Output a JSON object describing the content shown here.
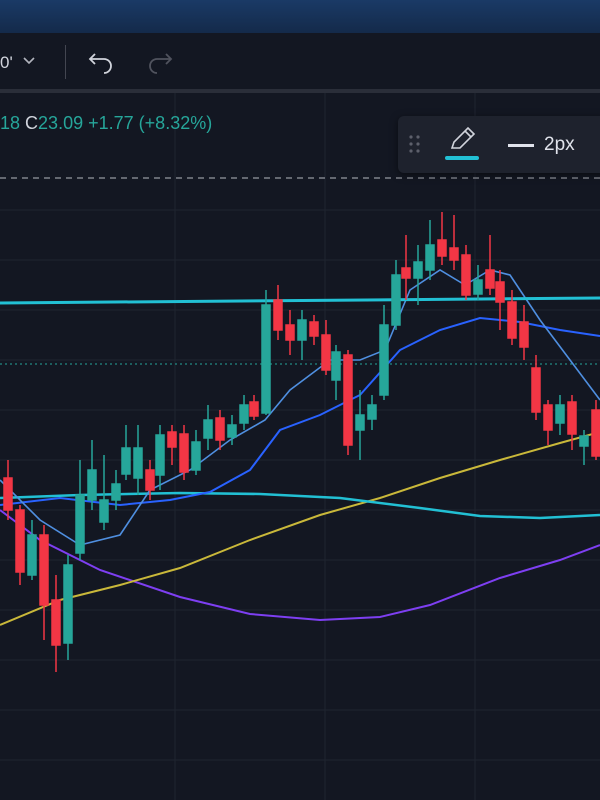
{
  "toolbar": {
    "interval_fragment": "0'",
    "undo_icon": "undo-arrow-icon",
    "redo_icon": "redo-arrow-icon"
  },
  "legend": {
    "prev_fragment": "18",
    "close_label": "C",
    "close_value": "23.09",
    "change": "+1.77",
    "change_pct": "(+8.32%)"
  },
  "drawing_toolbar": {
    "drag_icon": "drag-handle-icon",
    "pencil_icon": "pencil-icon",
    "line_width_label": "2px"
  },
  "colors": {
    "background": "#131722",
    "bullish": "#26a69a",
    "bearish": "#f23645",
    "accent_cyan": "#22c0d4",
    "ma_blue": "#2962ff",
    "ma_yellow": "#c9b83a",
    "ma_purple": "#7e3ff2"
  }
}
